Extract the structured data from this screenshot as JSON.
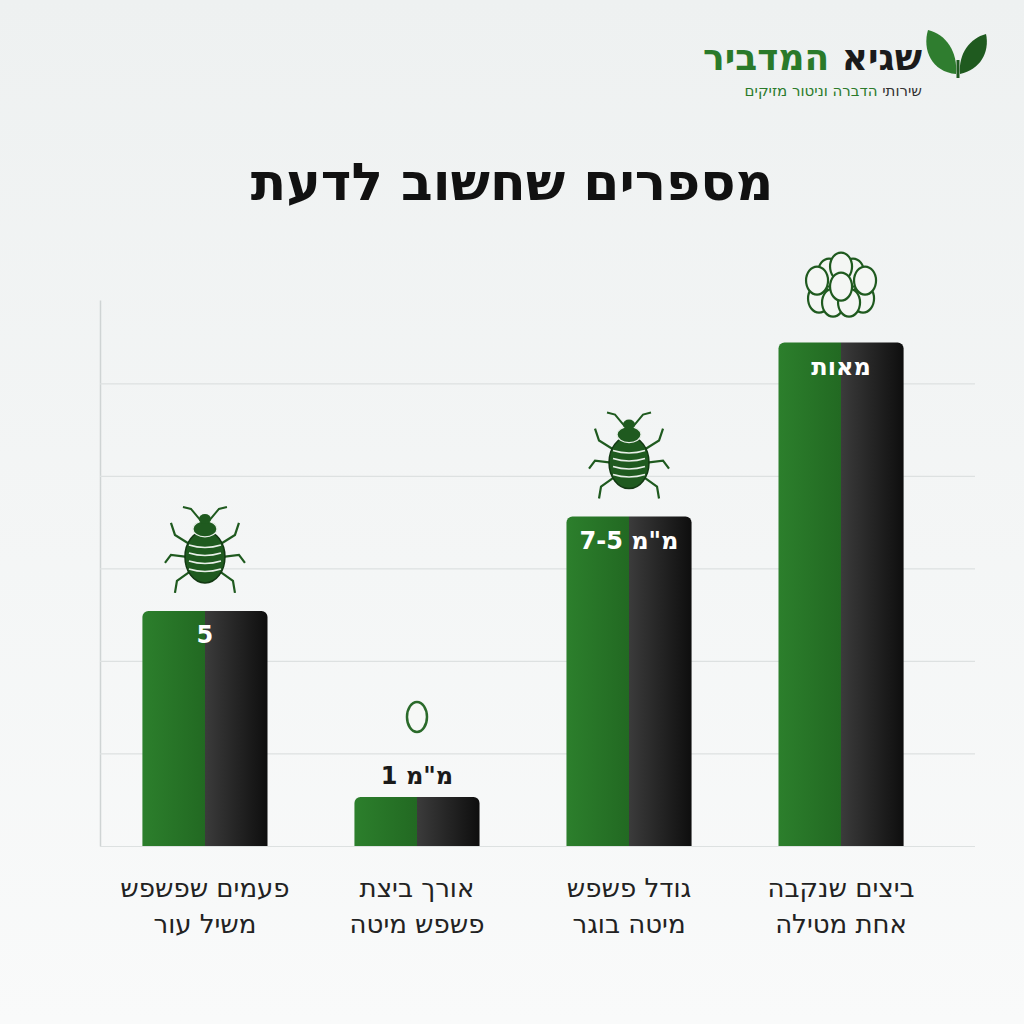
{
  "header": {
    "brand": "שגיא המדביר",
    "tagline": "שירותי הדברה וניטור מזיקים"
  },
  "chart_data": {
    "type": "bar",
    "title": "מספרים שחשוב לדעת",
    "categories": [
      "פעמים שפשפש משיל עור",
      "אורך ביצת פשפש מיטה",
      "גודל פשפש מיטה בוגר",
      "ביצים שנקבה אחת מטילה"
    ],
    "values": [
      2.54,
      0.53,
      3.56,
      5.44
    ],
    "annotations": [
      "5",
      "1 מ\"מ",
      "7-5 מ\"מ",
      "מאות"
    ],
    "ylim": [
      0,
      5.9
    ],
    "yticks": [
      0,
      1,
      2,
      3,
      4,
      5
    ],
    "grid": true,
    "tick_labels": false
  }
}
